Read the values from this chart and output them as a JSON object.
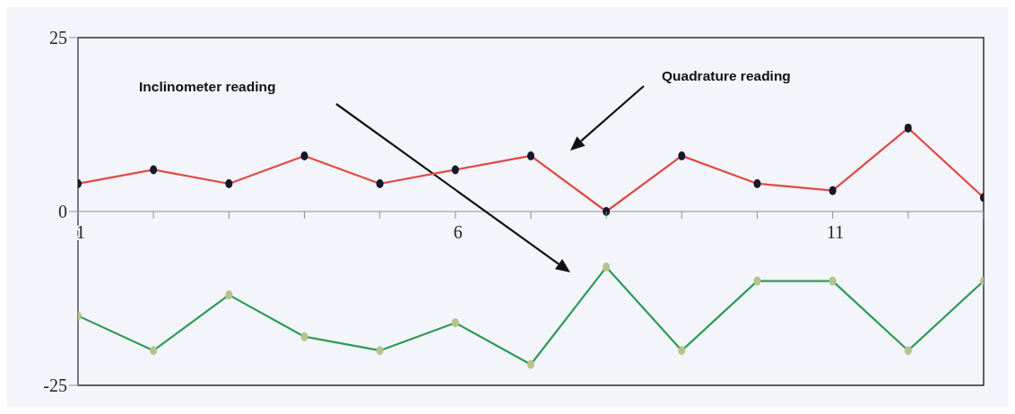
{
  "chart_data": {
    "type": "line",
    "x": [
      1,
      2,
      3,
      4,
      5,
      6,
      7,
      8,
      9,
      10,
      11,
      12,
      13
    ],
    "series": [
      {
        "color": "#e04a46",
        "values": [
          4,
          6,
          4,
          8,
          4,
          6,
          8,
          0,
          8,
          4,
          3,
          12,
          2
        ]
      },
      {
        "color": "#2e9a5a",
        "values": [
          -15,
          -20,
          -12,
          -18,
          -20,
          -16,
          -22,
          -8,
          -20,
          -10,
          -10,
          -20,
          -10
        ]
      }
    ],
    "annotations": [
      "Quadrature reading",
      "Inclinometer reading"
    ],
    "xlim": [
      1,
      13
    ],
    "xticks": [
      1,
      {
        "value": 2,
        "label": null
      },
      {
        "value": 3,
        "label": null
      },
      {
        "value": 4,
        "label": null
      },
      {
        "value": 5,
        "label": null
      },
      6,
      {
        "value": 7,
        "label": null
      },
      {
        "value": 8,
        "label": null
      },
      {
        "value": 9,
        "label": null
      },
      {
        "value": 10,
        "label": null
      },
      11,
      {
        "value": 12,
        "label": null
      },
      {
        "value": 13,
        "label": null
      }
    ],
    "ylim": [
      -25,
      25
    ],
    "yticks": [
      -25,
      0,
      25
    ],
    "marker": "circle",
    "line_style": "solid"
  }
}
